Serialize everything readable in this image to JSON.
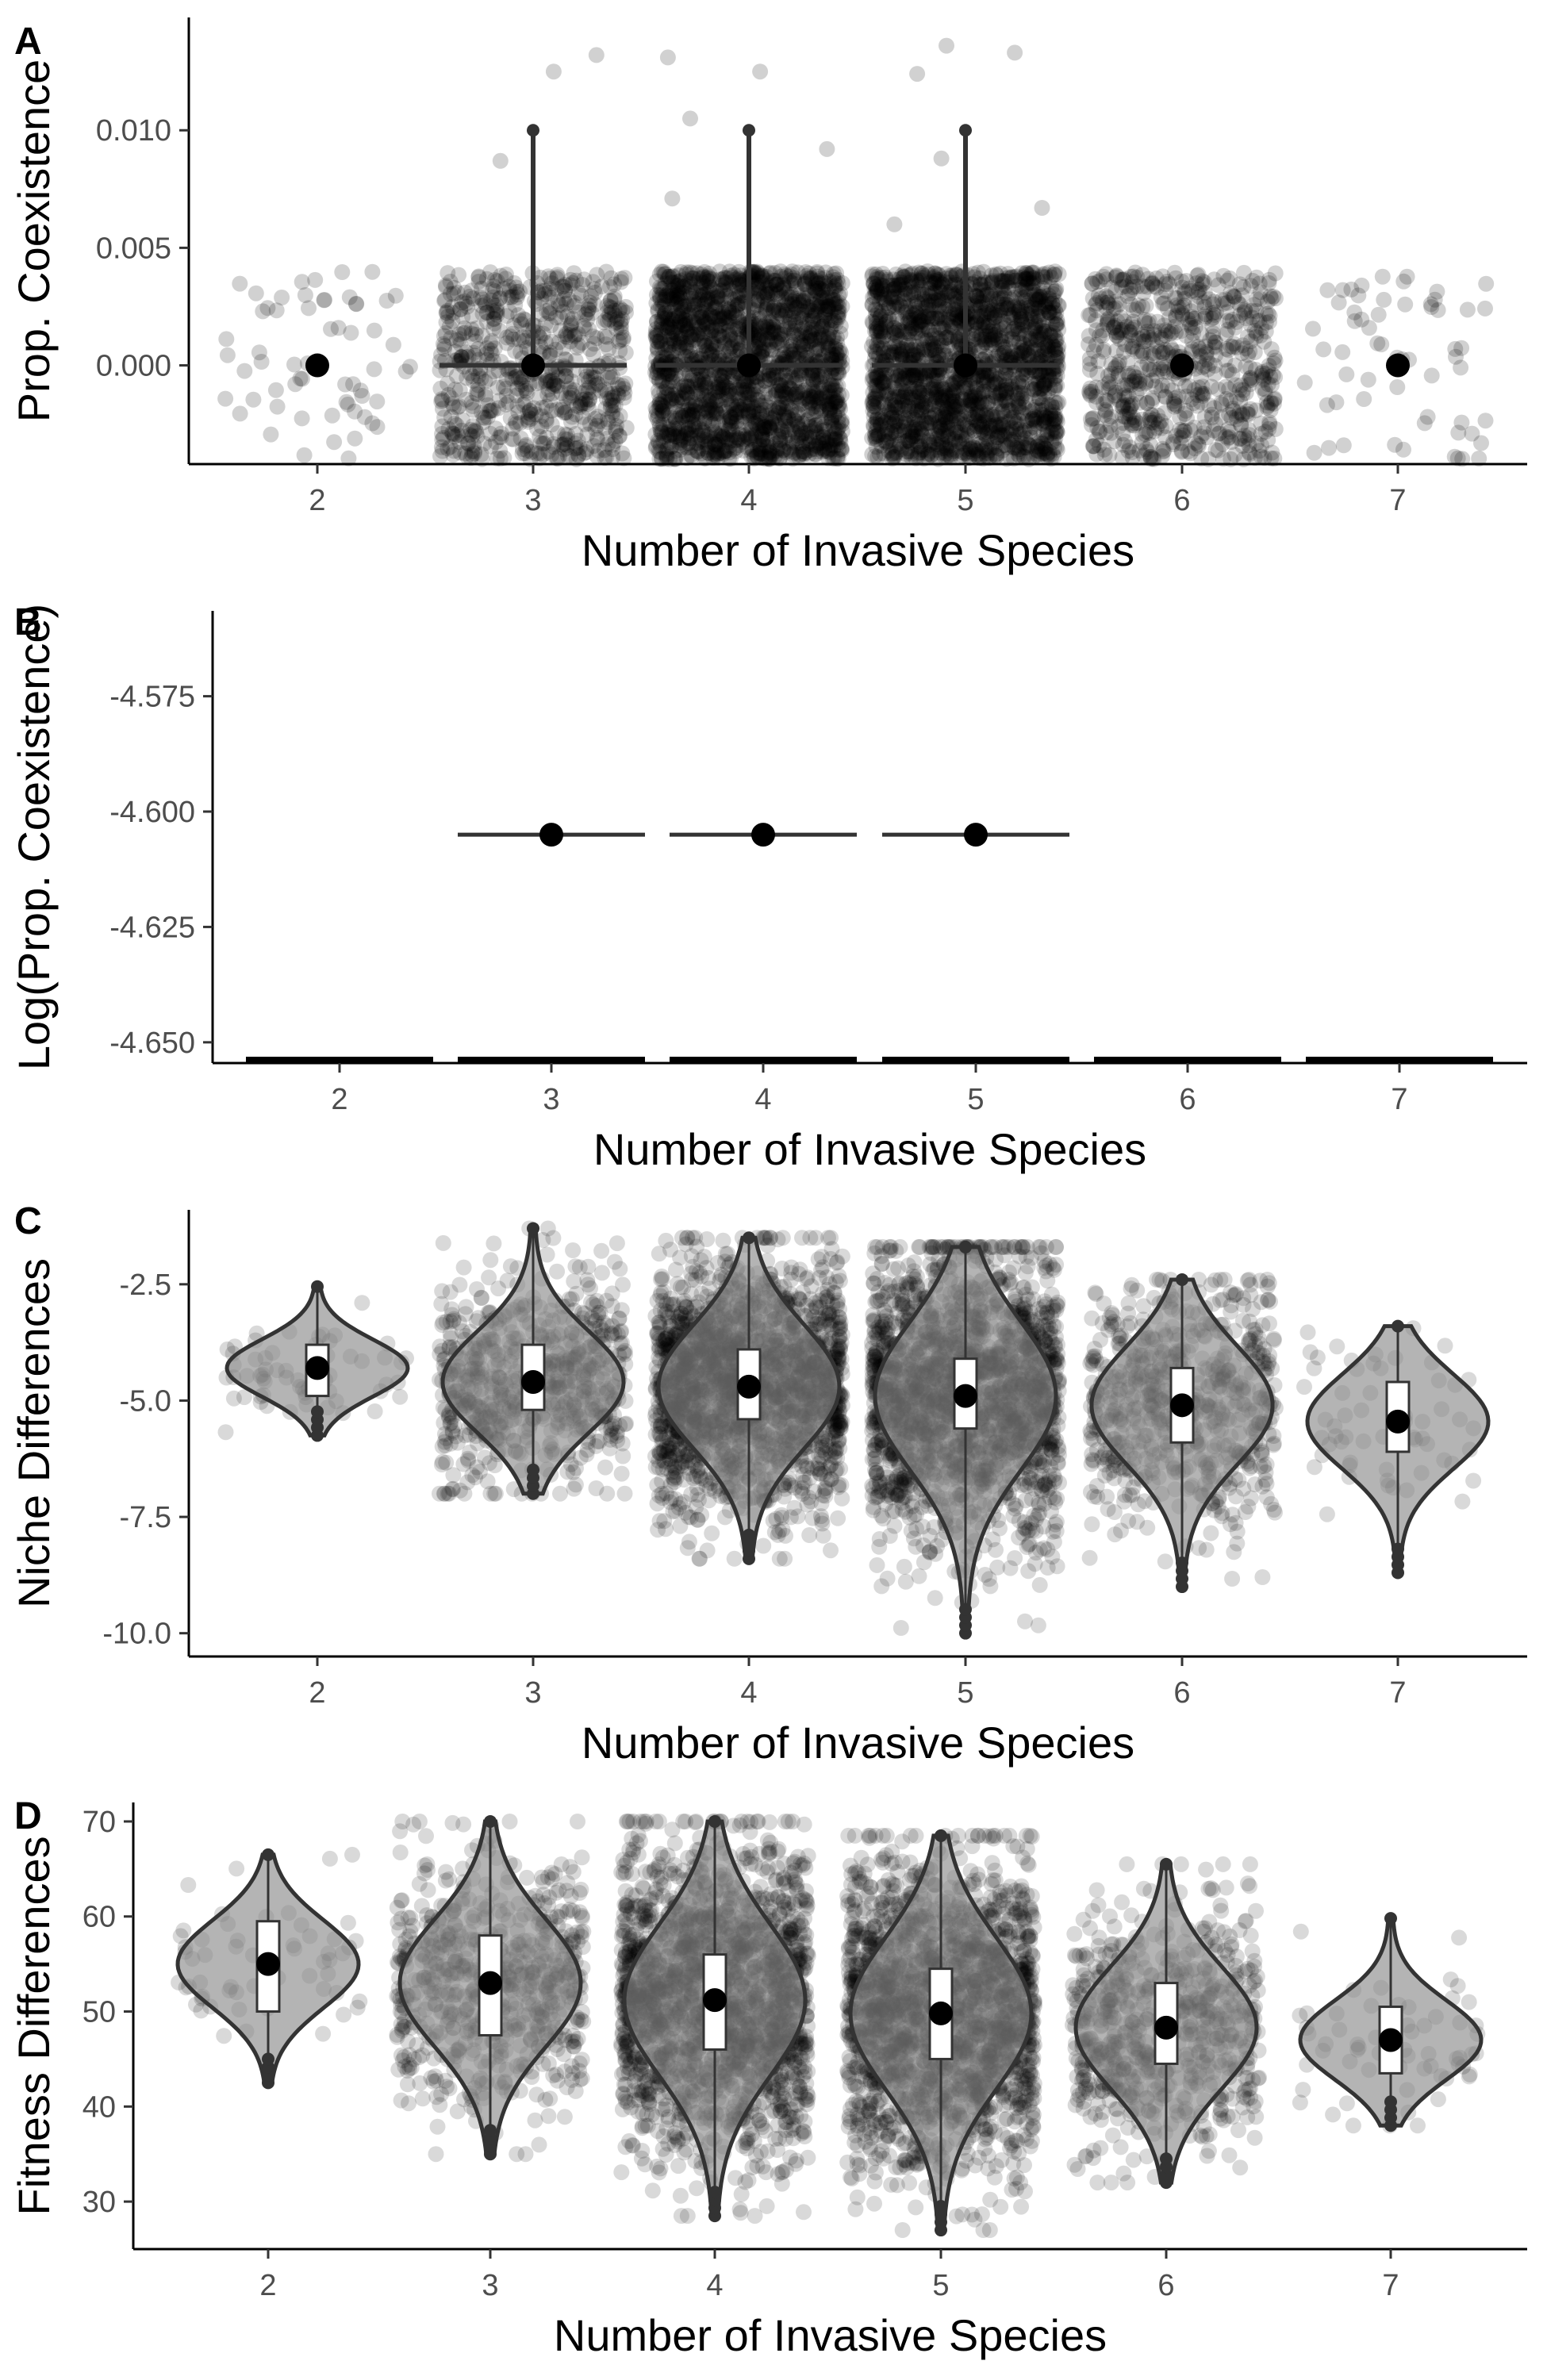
{
  "colors": {
    "points": "#000000",
    "violin_fill": "#8c8c8c",
    "line": "#333333",
    "axis_text": "#4d4d4d"
  },
  "chart_data": [
    {
      "panel_tag": "A",
      "type": "scatter",
      "xlabel": "Number of Invasive Species",
      "ylabel": "Prop. Coexistence",
      "categories": [
        "2",
        "3",
        "4",
        "5",
        "6",
        "7"
      ],
      "ylim": [
        -0.0042,
        0.0148
      ],
      "yticks": [
        0.0,
        0.005,
        0.01
      ],
      "ytick_labels": [
        "0.000",
        "0.005",
        "0.010"
      ],
      "point_counts": [
        60,
        700,
        2000,
        2000,
        700,
        60
      ],
      "jitter_range": [
        -0.004,
        0.004
      ],
      "outliers": [
        [],
        [
          0.0125,
          0.0132,
          0.0087
        ],
        [
          0.0131,
          0.0125,
          0.0105,
          0.0092,
          0.0071
        ],
        [
          0.0136,
          0.0124,
          0.0133,
          0.0088,
          0.006,
          0.0067
        ],
        [],
        []
      ],
      "means": [
        0.0,
        0.0,
        0.0,
        0.0,
        0.0,
        0.0
      ],
      "error_bars": [
        null,
        [
          -0.0001,
          0.01
        ],
        [
          -0.0001,
          0.01
        ],
        [
          -0.0001,
          0.01
        ],
        null,
        null
      ],
      "mean_lines": [
        null,
        [
          0.0,
          0.0
        ],
        [
          0.0,
          0.0
        ],
        [
          0.0,
          0.0
        ],
        null,
        null
      ],
      "legend": "none",
      "grid": false
    },
    {
      "panel_tag": "B",
      "type": "scatter",
      "xlabel": "Number of Invasive Species",
      "ylabel": "Log(Prop. Coexistence)",
      "categories": [
        "2",
        "3",
        "4",
        "5",
        "6",
        "7"
      ],
      "ylim": [
        -4.6545,
        -4.5565
      ],
      "yticks": [
        -4.65,
        -4.625,
        -4.6,
        -4.575
      ],
      "ytick_labels": [
        "-4.650",
        "-4.625",
        "-4.600",
        "-4.575"
      ],
      "baseline_value": -4.6545,
      "means": [
        null,
        -4.605,
        -4.605,
        -4.605,
        null,
        null
      ],
      "legend": "none",
      "grid": false
    },
    {
      "panel_tag": "C",
      "type": "scatter",
      "xlabel": "Number of Invasive Species",
      "ylabel": "Niche Differences",
      "categories": [
        "2",
        "3",
        "4",
        "5",
        "6",
        "7"
      ],
      "ylim": [
        -10.5,
        -0.9
      ],
      "yticks": [
        -10,
        -7.5,
        -5,
        -2.5
      ],
      "ytick_labels": [
        "-10.0",
        "-7.5",
        "-5.0",
        "-2.5"
      ],
      "point_counts": [
        60,
        700,
        2000,
        2000,
        700,
        60
      ],
      "means": [
        -4.3,
        -4.6,
        -4.7,
        -4.9,
        -5.1,
        -5.45
      ],
      "box_q": [
        [
          -4.9,
          -3.8
        ],
        [
          -5.2,
          -3.8
        ],
        [
          -5.4,
          -3.9
        ],
        [
          -5.6,
          -4.1
        ],
        [
          -5.9,
          -4.3
        ],
        [
          -6.1,
          -4.6
        ]
      ],
      "whiskers": [
        [
          -5.75,
          -2.55
        ],
        [
          -7.0,
          -1.3
        ],
        [
          -8.4,
          -1.5
        ],
        [
          -10.0,
          -1.7
        ],
        [
          -9.0,
          -2.4
        ],
        [
          -8.7,
          -3.4
        ]
      ],
      "legend": "none",
      "grid": false
    },
    {
      "panel_tag": "D",
      "type": "scatter",
      "xlabel": "Number of Invasive Species",
      "ylabel": "Fitness Differences",
      "categories": [
        "2",
        "3",
        "4",
        "5",
        "6",
        "7"
      ],
      "ylim": [
        25,
        72
      ],
      "yticks": [
        30,
        40,
        50,
        60,
        70
      ],
      "ytick_labels": [
        "30",
        "40",
        "50",
        "60",
        "70"
      ],
      "point_counts": [
        60,
        700,
        2000,
        2000,
        700,
        60
      ],
      "means": [
        55,
        53,
        51.2,
        49.8,
        48.3,
        47
      ],
      "box_q": [
        [
          50,
          59.5
        ],
        [
          47.5,
          58
        ],
        [
          46,
          56
        ],
        [
          45,
          54.5
        ],
        [
          44.5,
          53
        ],
        [
          43.5,
          50.5
        ]
      ],
      "whiskers": [
        [
          42.5,
          66.5
        ],
        [
          35,
          70
        ],
        [
          28.5,
          70
        ],
        [
          27,
          68.5
        ],
        [
          32,
          65.5
        ],
        [
          38,
          59.8
        ]
      ],
      "legend": "none",
      "grid": false
    }
  ]
}
